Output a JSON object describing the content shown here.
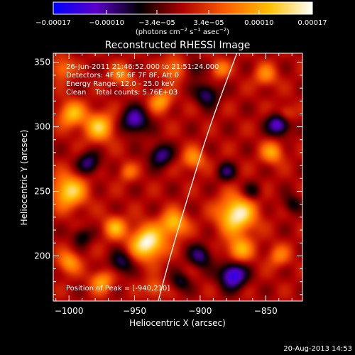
{
  "chart_data": {
    "type": "heatmap",
    "title": "Reconstructed RHESSI Image",
    "xlabel": "Heliocentric X (arcsec)",
    "ylabel": "Heliocentric Y (arcsec)",
    "xlim": [
      -1012,
      -822
    ],
    "ylim": [
      165,
      357
    ],
    "x_ticks": [
      -1000,
      -950,
      -900,
      -850
    ],
    "x_tick_labels": [
      "−1000",
      "−950",
      "−900",
      "−850"
    ],
    "y_ticks": [
      200,
      250,
      300,
      350
    ],
    "y_tick_labels": [
      "200",
      "250",
      "300",
      "350"
    ],
    "colorbar": {
      "range": [
        -0.00017,
        0.00017
      ],
      "ticks": [
        -0.00017,
        -0.0001,
        -3.4e-05,
        3.4e-05,
        0.0001,
        0.00017
      ],
      "tick_labels": [
        "−0.00017",
        "−0.00010",
        "−3.4e−05",
        "3.4e−05",
        "0.00010",
        "0.00017"
      ],
      "units_prefix": "(photons cm",
      "units_sup1": "−2",
      "units_mid": " s",
      "units_sup2": "−1",
      "units_mid2": " asec",
      "units_sup3": "−2",
      "units_suffix": ")",
      "colormap": [
        "#0000ff",
        "#5a00c8",
        "#000000",
        "#b00000",
        "#ff6000",
        "#ffc000",
        "#ffffff"
      ]
    },
    "annotations": [
      "26-Jun-2011 21:46:52.000 to 21:51:24.000",
      "Detectors: 4F 5F 6F 7F 8F, Att 0",
      "Energy Range: 12.0 - 25.0 keV",
      "Clean    Total counts: 5.76E+03"
    ],
    "peak_label": "Position of Peak = [-940,210]",
    "peak": [
      -940,
      210
    ],
    "limb_curve": [
      [
        -932,
        165
      ],
      [
        -920,
        210
      ],
      [
        -908,
        250
      ],
      [
        -893,
        300
      ],
      [
        -872,
        357
      ]
    ],
    "sources": [
      {
        "x": -940,
        "y": 210,
        "amp": 1.0,
        "s": 9
      },
      {
        "x": -872,
        "y": 232,
        "amp": 0.95,
        "s": 10
      },
      {
        "x": -1000,
        "y": 250,
        "amp": 0.8,
        "s": 9
      },
      {
        "x": -977,
        "y": 300,
        "amp": 0.7,
        "s": 8
      },
      {
        "x": -998,
        "y": 310,
        "amp": 0.65,
        "s": 7
      },
      {
        "x": -920,
        "y": 225,
        "amp": 0.7,
        "s": 7
      },
      {
        "x": -965,
        "y": 222,
        "amp": 0.6,
        "s": 6
      },
      {
        "x": -930,
        "y": 320,
        "amp": 0.55,
        "s": 6
      },
      {
        "x": -920,
        "y": 345,
        "amp": 0.5,
        "s": 6
      },
      {
        "x": -870,
        "y": 205,
        "amp": 0.6,
        "s": 7
      },
      {
        "x": -905,
        "y": 275,
        "amp": 0.5,
        "s": 6
      },
      {
        "x": -1000,
        "y": 195,
        "amp": 0.55,
        "s": 6
      },
      {
        "x": -975,
        "y": 180,
        "amp": 0.55,
        "s": 6
      },
      {
        "x": -850,
        "y": 340,
        "amp": 0.45,
        "s": 6
      },
      {
        "x": -845,
        "y": 280,
        "amp": 0.55,
        "s": 6
      },
      {
        "x": -960,
        "y": 340,
        "amp": 0.45,
        "s": 6
      },
      {
        "x": -885,
        "y": 345,
        "amp": 0.45,
        "s": 5
      },
      {
        "x": -835,
        "y": 310,
        "amp": 0.4,
        "s": 5
      },
      {
        "x": -955,
        "y": 265,
        "amp": 0.35,
        "s": 5
      },
      {
        "x": -840,
        "y": 200,
        "amp": 0.4,
        "s": 6
      },
      {
        "x": -935,
        "y": 175,
        "amp": 0.4,
        "s": 5
      },
      {
        "x": -1005,
        "y": 345,
        "amp": 0.45,
        "s": 6
      },
      {
        "x": -950,
        "y": 305,
        "amp": -0.7,
        "s": 7
      },
      {
        "x": -875,
        "y": 185,
        "amp": -0.9,
        "s": 7
      },
      {
        "x": -840,
        "y": 302,
        "amp": -0.8,
        "s": 6
      },
      {
        "x": -930,
        "y": 278,
        "amp": -0.6,
        "s": 6
      },
      {
        "x": -985,
        "y": 272,
        "amp": -0.55,
        "s": 6
      },
      {
        "x": -895,
        "y": 325,
        "amp": -0.55,
        "s": 6
      },
      {
        "x": -960,
        "y": 195,
        "amp": -0.5,
        "s": 6
      },
      {
        "x": -900,
        "y": 200,
        "amp": -0.55,
        "s": 6
      },
      {
        "x": -880,
        "y": 265,
        "amp": -0.45,
        "s": 5
      },
      {
        "x": -915,
        "y": 180,
        "amp": -0.4,
        "s": 5
      },
      {
        "x": -990,
        "y": 215,
        "amp": -0.4,
        "s": 5
      },
      {
        "x": -860,
        "y": 250,
        "amp": -0.35,
        "s": 5
      },
      {
        "x": -905,
        "y": 345,
        "amp": -0.35,
        "s": 5
      },
      {
        "x": -830,
        "y": 240,
        "amp": -0.35,
        "s": 5
      }
    ]
  },
  "footer": {
    "timestamp": "20-Aug-2013 14:53"
  }
}
